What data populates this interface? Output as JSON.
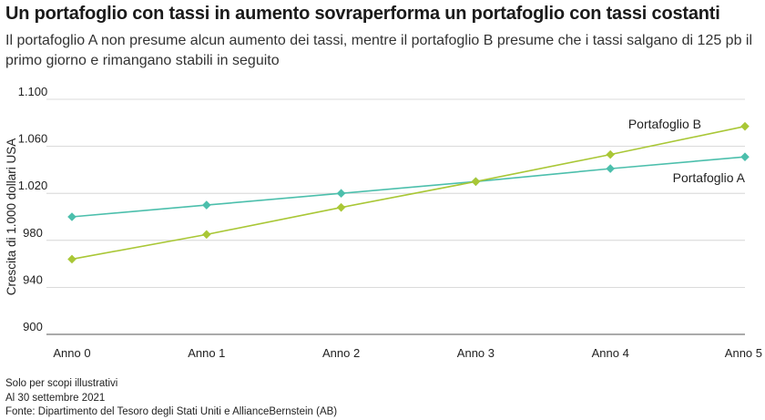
{
  "chart_data": {
    "type": "line",
    "title": "Un portafoglio con tassi in aumento sovraperforma un portafoglio con tassi costanti",
    "subtitle": "Il portafoglio A non presume alcun aumento dei tassi, mentre il portafoglio B presume che i tassi salgano di 125 pb il primo giorno e rimangano stabili in seguito",
    "ylabel": "Crescita di 1.000 dollari USA",
    "xlabel": "",
    "categories": [
      "Anno 0",
      "Anno 1",
      "Anno 2",
      "Anno 3",
      "Anno 4",
      "Anno 5"
    ],
    "ylim": [
      900,
      1100
    ],
    "yticks": [
      900,
      940,
      980,
      1020,
      1060,
      1100
    ],
    "ytick_labels": [
      "900",
      "940",
      "980",
      "1.020",
      "1.060",
      "1.100"
    ],
    "grid": true,
    "series": [
      {
        "name": "Portafoglio A",
        "color": "#4cbfac",
        "values": [
          1000,
          1010,
          1020,
          1030,
          1041,
          1051
        ]
      },
      {
        "name": "Portafoglio B",
        "color": "#a9c736",
        "values": [
          964,
          985,
          1008,
          1030,
          1053,
          1077
        ]
      }
    ]
  },
  "notes": [
    "Solo per scopi illustrativi",
    "Al 30 settembre 2021",
    "Fonte: Dipartimento del Tesoro degli Stati Uniti e AllianceBernstein (AB)"
  ]
}
